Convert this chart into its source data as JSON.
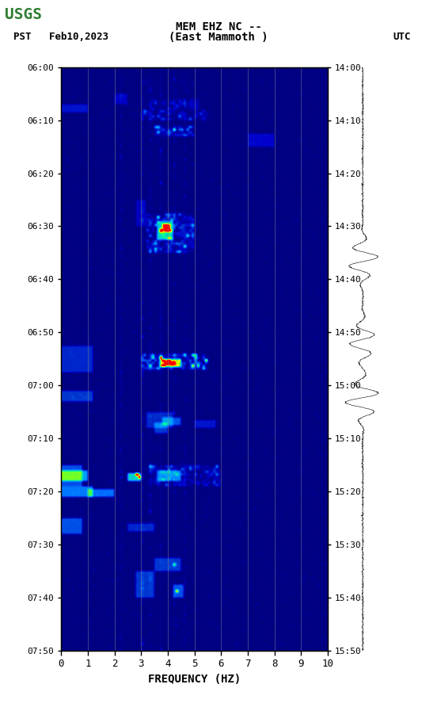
{
  "title_line1": "MEM EHZ NC --",
  "title_line2": "(East Mammoth )",
  "left_label": "PST   Feb10,2023",
  "right_label": "UTC",
  "xlabel": "FREQUENCY (HZ)",
  "freq_min": 0,
  "freq_max": 10,
  "freq_ticks": [
    0,
    1,
    2,
    3,
    4,
    5,
    6,
    7,
    8,
    9,
    10
  ],
  "time_start_left": "06:00",
  "time_end_left": "07:50",
  "time_start_right": "14:00",
  "time_end_right": "15:50",
  "time_ticks_left": [
    "06:00",
    "06:10",
    "06:20",
    "06:30",
    "06:40",
    "06:50",
    "07:00",
    "07:10",
    "07:20",
    "07:30",
    "07:40",
    "07:50"
  ],
  "time_ticks_right": [
    "14:00",
    "14:10",
    "14:20",
    "14:30",
    "14:40",
    "14:50",
    "15:00",
    "15:10",
    "15:20",
    "15:30",
    "15:40",
    "15:50"
  ],
  "bg_color": "#ffffff",
  "spectrogram_bg": "#000080",
  "grid_color": "#808080",
  "fig_width": 5.52,
  "fig_height": 8.92,
  "usgs_green": "#2e7d32",
  "font_family": "monospace"
}
